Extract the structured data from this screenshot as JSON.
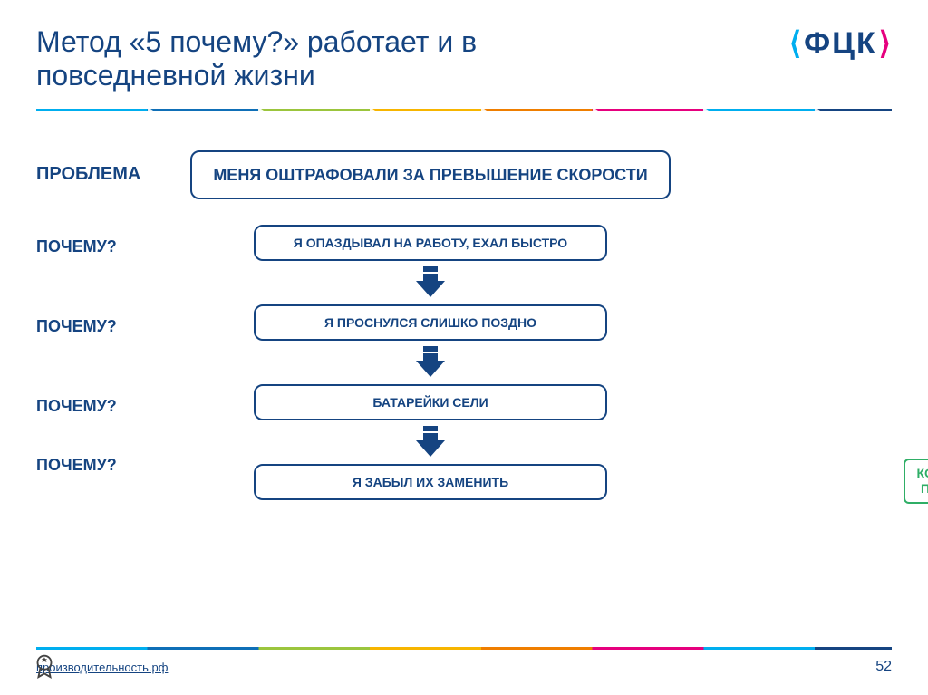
{
  "title": "Метод «5 почему?» работает и в повседневной жизни",
  "logo": {
    "open": "⟨",
    "text": "ФЦК",
    "close": "⟩"
  },
  "labels": {
    "problem": "ПРОБЛЕМА",
    "why": "ПОЧЕМУ?",
    "root_cause_line1": "КОРЕННАЯ",
    "root_cause_line2": "ПРИЧИНА"
  },
  "flow": {
    "problem_box": "МЕНЯ ОШТРАФОВАЛИ ЗА ПРЕВЫШЕНИЕ СКОРОСТИ",
    "steps": [
      "Я ОПАЗДЫВАЛ НА РАБОТУ, ЕХАЛ БЫСТРО",
      "Я ПРОСНУЛСЯ СЛИШКО ПОЗДНО",
      "БАТАРЕЙКИ СЕЛИ",
      "Я ЗАБЫЛ ИХ ЗАМЕНИТЬ"
    ]
  },
  "colors": {
    "primary": "#154481",
    "accent_green": "#2fae66",
    "arrow_fill": "#154481"
  },
  "footer": {
    "link": "производительность.рф",
    "page": "52"
  },
  "divider_arrow_positions_pct": [
    13,
    26,
    39,
    52,
    65,
    78,
    91
  ]
}
